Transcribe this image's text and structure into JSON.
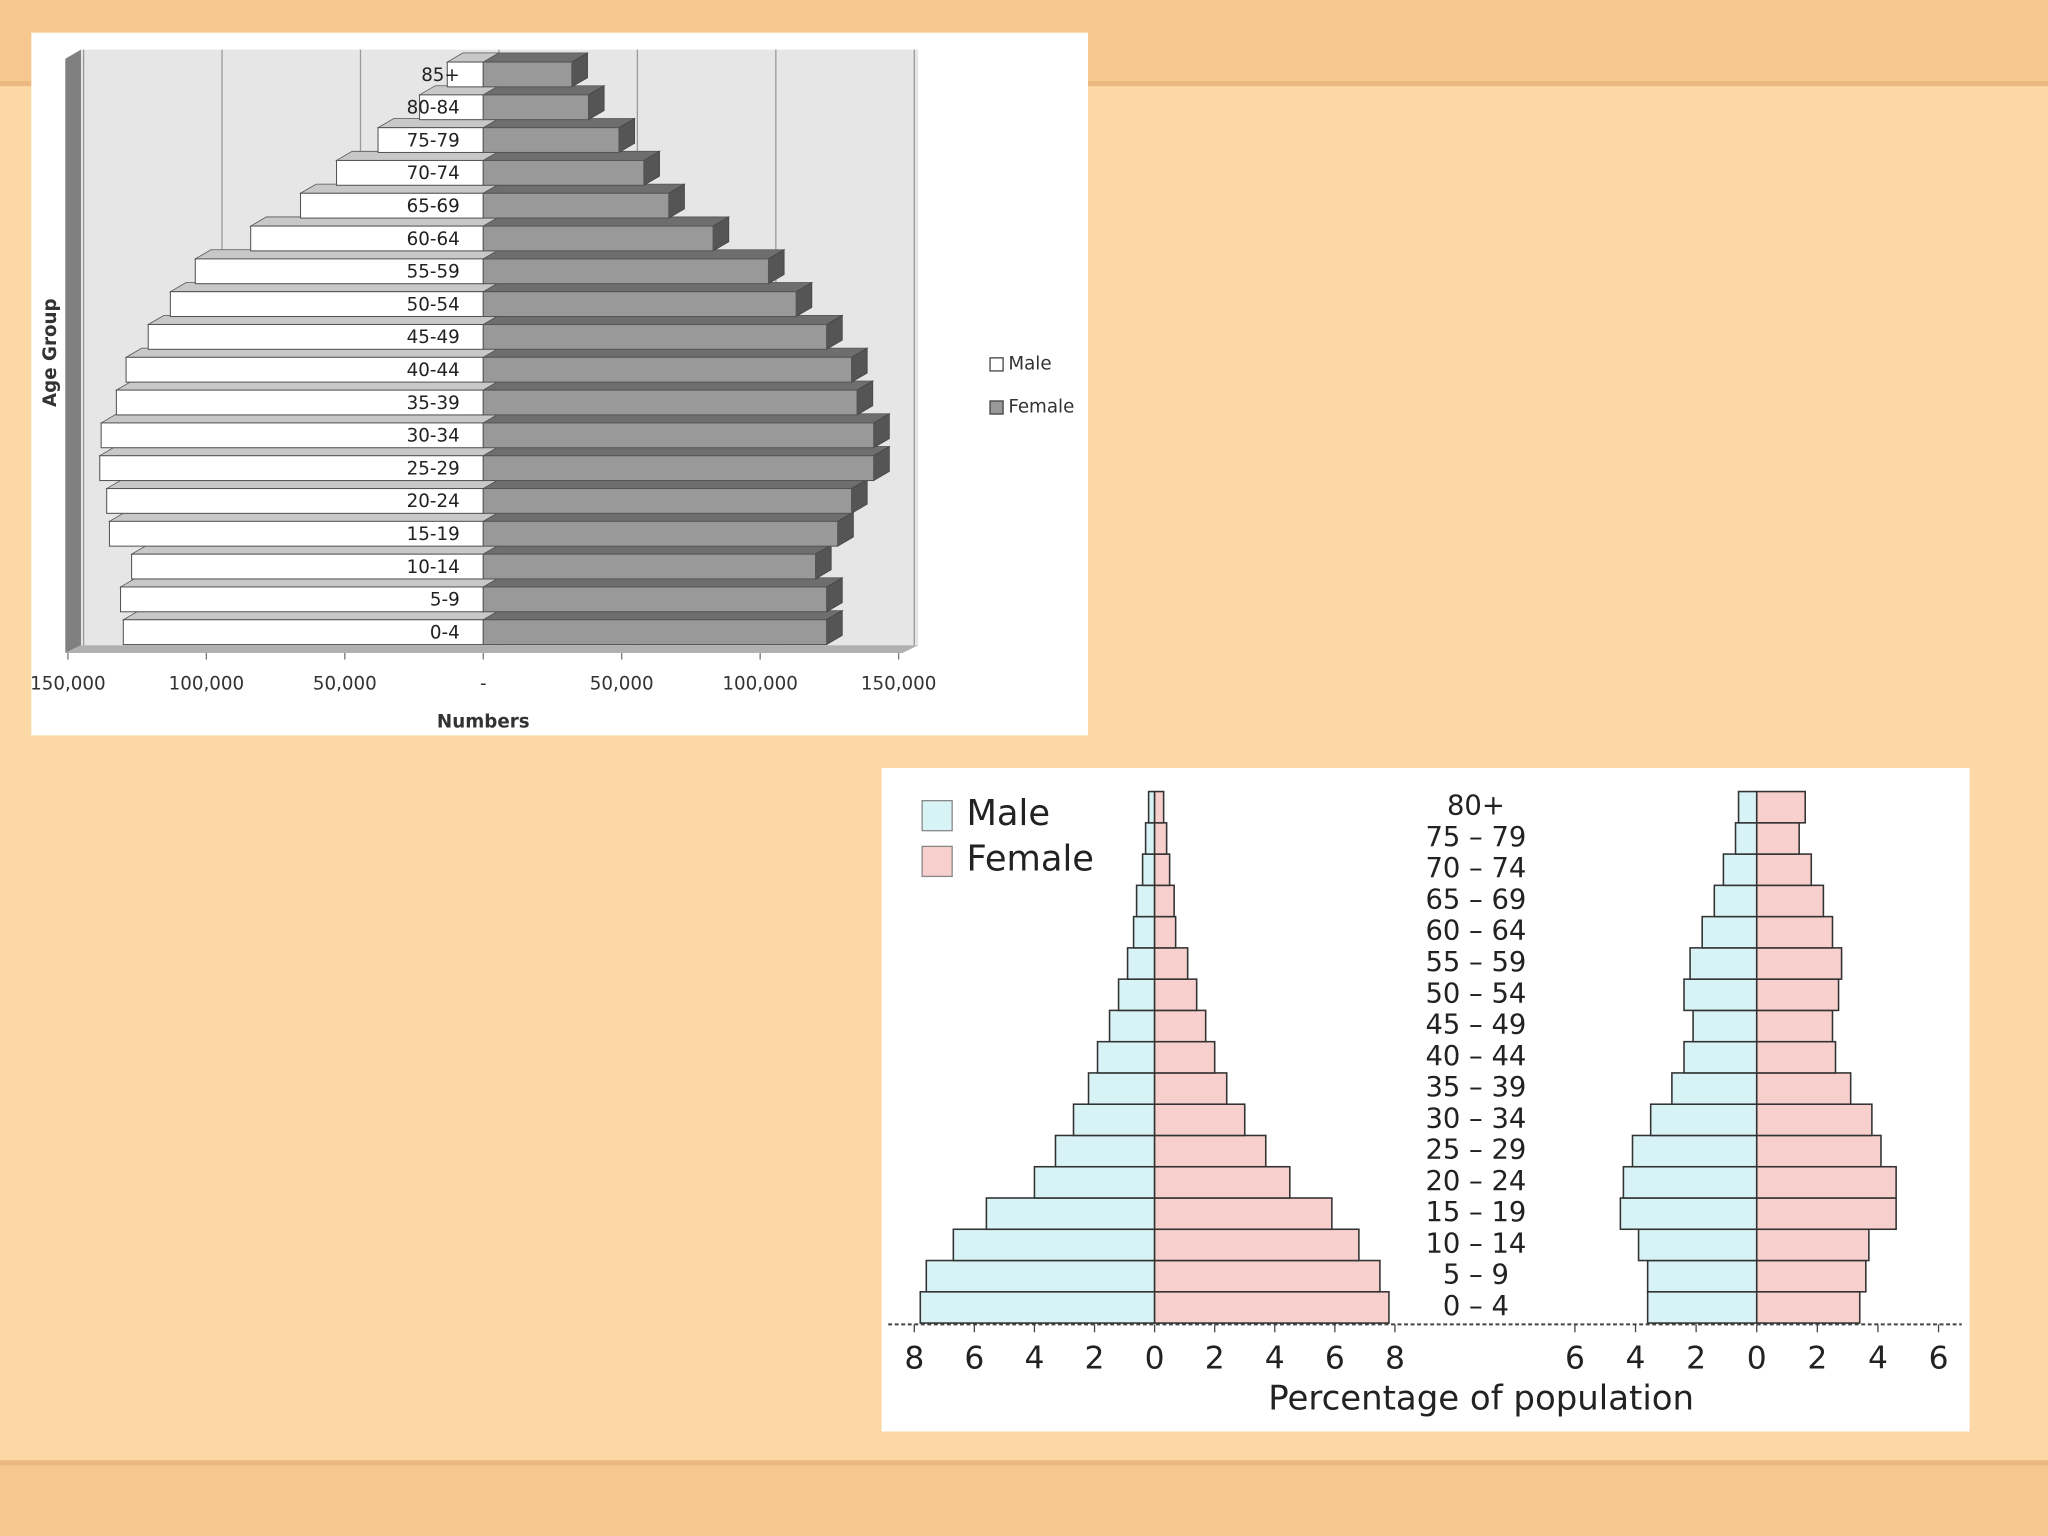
{
  "chart_data": [
    {
      "type": "pyramid3d",
      "xlabel": "Numbers",
      "ylabel": "Age Group",
      "categories": [
        "0-4",
        "5-9",
        "10-14",
        "15-19",
        "20-24",
        "25-29",
        "30-34",
        "35-39",
        "40-44",
        "45-49",
        "50-54",
        "55-59",
        "60-64",
        "65-69",
        "70-74",
        "75-79",
        "80-84",
        "85+"
      ],
      "series": [
        {
          "name": "Male",
          "color": "#ffffff",
          "values": [
            -130000,
            -131000,
            -127000,
            -135000,
            -136000,
            -138500,
            -138000,
            -132500,
            -129000,
            -121000,
            -113000,
            -104000,
            -84000,
            -66000,
            -53000,
            -38000,
            -23000,
            -13000
          ]
        },
        {
          "name": "Female",
          "color": "#999999",
          "values": [
            124000,
            124000,
            120000,
            128000,
            133000,
            141000,
            141000,
            135000,
            133000,
            124000,
            113000,
            103000,
            83000,
            67000,
            58000,
            49000,
            38000,
            32000
          ]
        }
      ],
      "xlim": [
        -150000,
        150000
      ],
      "xticks": [
        {
          "value": -150000,
          "label": "150,000"
        },
        {
          "value": -100000,
          "label": "100,000"
        },
        {
          "value": -50000,
          "label": "50,000"
        },
        {
          "value": 0,
          "label": "-"
        },
        {
          "value": 50000,
          "label": "50,000"
        },
        {
          "value": 100000,
          "label": "100,000"
        },
        {
          "value": 150000,
          "label": "150,000"
        }
      ],
      "grid": true,
      "legend": "right"
    },
    {
      "type": "pyramid",
      "xlabel": "Percentage of population",
      "categories": [
        "0 – 4",
        "5 – 9",
        "10 – 14",
        "15 – 19",
        "20 – 24",
        "25 – 29",
        "30 – 34",
        "35 – 39",
        "40 – 44",
        "45 – 49",
        "50 – 54",
        "55 – 59",
        "60 – 64",
        "65 – 69",
        "70 – 74",
        "75 – 79",
        "80+"
      ],
      "legend": [
        {
          "name": "Male",
          "color": "#d8f3f6"
        },
        {
          "name": "Female",
          "color": "#f7cfcd"
        }
      ],
      "panels": [
        {
          "xlim": [
            -8.5,
            8.5
          ],
          "xticks": [
            {
              "value": -8,
              "label": "8"
            },
            {
              "value": -6,
              "label": "6"
            },
            {
              "value": -4,
              "label": "4"
            },
            {
              "value": -2,
              "label": "2"
            },
            0,
            2,
            4,
            6,
            8
          ],
          "series": [
            {
              "values": [
                -7.8,
                -7.6,
                -6.7,
                -5.6,
                -4.0,
                -3.3,
                -2.7,
                -2.2,
                -1.9,
                -1.5,
                -1.2,
                -0.9,
                -0.7,
                -0.6,
                -0.4,
                -0.3,
                -0.2
              ]
            },
            {
              "values": [
                7.8,
                7.5,
                6.8,
                5.9,
                4.5,
                3.7,
                3.0,
                2.4,
                2.0,
                1.7,
                1.4,
                1.1,
                0.7,
                0.65,
                0.5,
                0.4,
                0.3
              ]
            }
          ]
        },
        {
          "xlim": [
            -6.5,
            6.5
          ],
          "xticks": [
            {
              "value": -6,
              "label": "6"
            },
            {
              "value": -4,
              "label": "4"
            },
            {
              "value": -2,
              "label": "2"
            },
            0,
            2,
            4,
            6
          ],
          "series": [
            {
              "values": [
                -3.6,
                -3.6,
                -3.9,
                -4.5,
                -4.4,
                -4.1,
                -3.5,
                -2.8,
                -2.4,
                -2.1,
                -2.4,
                -2.2,
                -1.8,
                -1.4,
                -1.1,
                -0.7,
                -0.6
              ]
            },
            {
              "values": [
                3.4,
                3.6,
                3.7,
                4.6,
                4.6,
                4.1,
                3.8,
                3.1,
                2.6,
                2.5,
                2.7,
                2.8,
                2.5,
                2.2,
                1.8,
                1.4,
                1.6
              ]
            }
          ]
        }
      ]
    }
  ]
}
